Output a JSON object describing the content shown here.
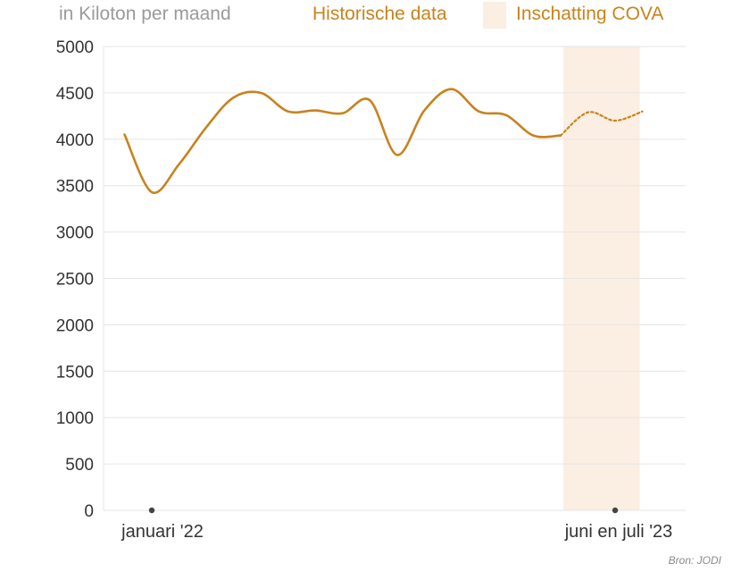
{
  "header": {
    "unit_label": "in Kiloton per maand"
  },
  "legend": {
    "historic_label": "Historische data",
    "estimate_label": "Inschatting COVA"
  },
  "source": "Bron: JODI",
  "colors": {
    "line": "#C8831E",
    "estimate_band": "#FBEEE2",
    "grid": "#E6E6E6",
    "axis": "#333333",
    "dot": "#444444"
  },
  "chart_data": {
    "type": "line",
    "title": "",
    "xlabel": "",
    "ylabel": "in Kiloton per maand",
    "ylim": [
      0,
      5000
    ],
    "yticks": [
      0,
      500,
      1000,
      1500,
      2000,
      2500,
      3000,
      3500,
      4000,
      4500,
      5000
    ],
    "grid": true,
    "legend_position": "top",
    "x_tick_labels": [
      {
        "label": "januari '22",
        "x": 0
      },
      {
        "label": "juni en juli '23",
        "x": 17
      }
    ],
    "series": [
      {
        "name": "Historische data",
        "style": "solid",
        "x": [
          -1,
          0,
          1,
          2,
          3,
          4,
          5,
          6,
          7,
          8,
          9,
          10,
          11,
          12,
          13,
          14,
          15
        ],
        "values": [
          4050,
          3430,
          3730,
          4130,
          4450,
          4500,
          4300,
          4310,
          4280,
          4420,
          3830,
          4310,
          4540,
          4300,
          4260,
          4040,
          4040
        ]
      },
      {
        "name": "Inschatting COVA",
        "style": "dotted",
        "x": [
          15,
          16,
          17,
          18
        ],
        "values": [
          4040,
          4290,
          4200,
          4300
        ]
      }
    ],
    "shaded_region": {
      "label": "Inschatting COVA",
      "x_start": 15.1,
      "x_end": 17.9
    }
  }
}
